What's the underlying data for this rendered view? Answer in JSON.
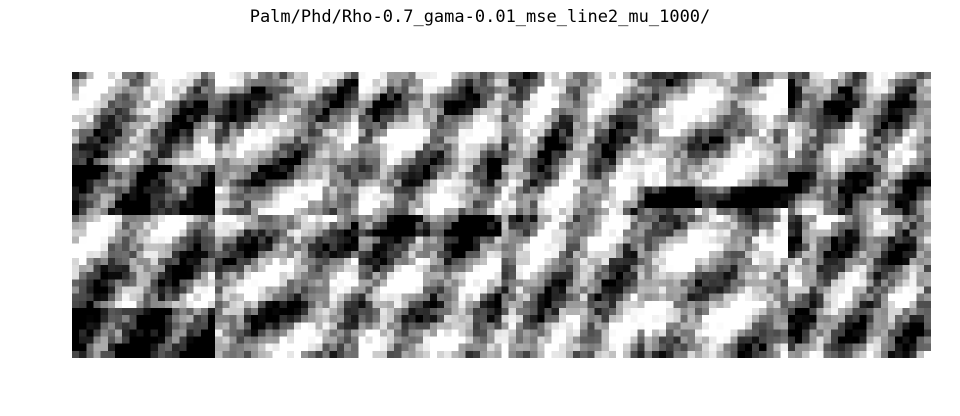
{
  "figure": {
    "title": "Palm/Phd/Rho-0.7_gama-0.01_mse_line2_mu_1000/"
  },
  "mosaic": {
    "rows": 2,
    "columns": 6,
    "patch_size": 20,
    "colormap": "grayscale"
  }
}
